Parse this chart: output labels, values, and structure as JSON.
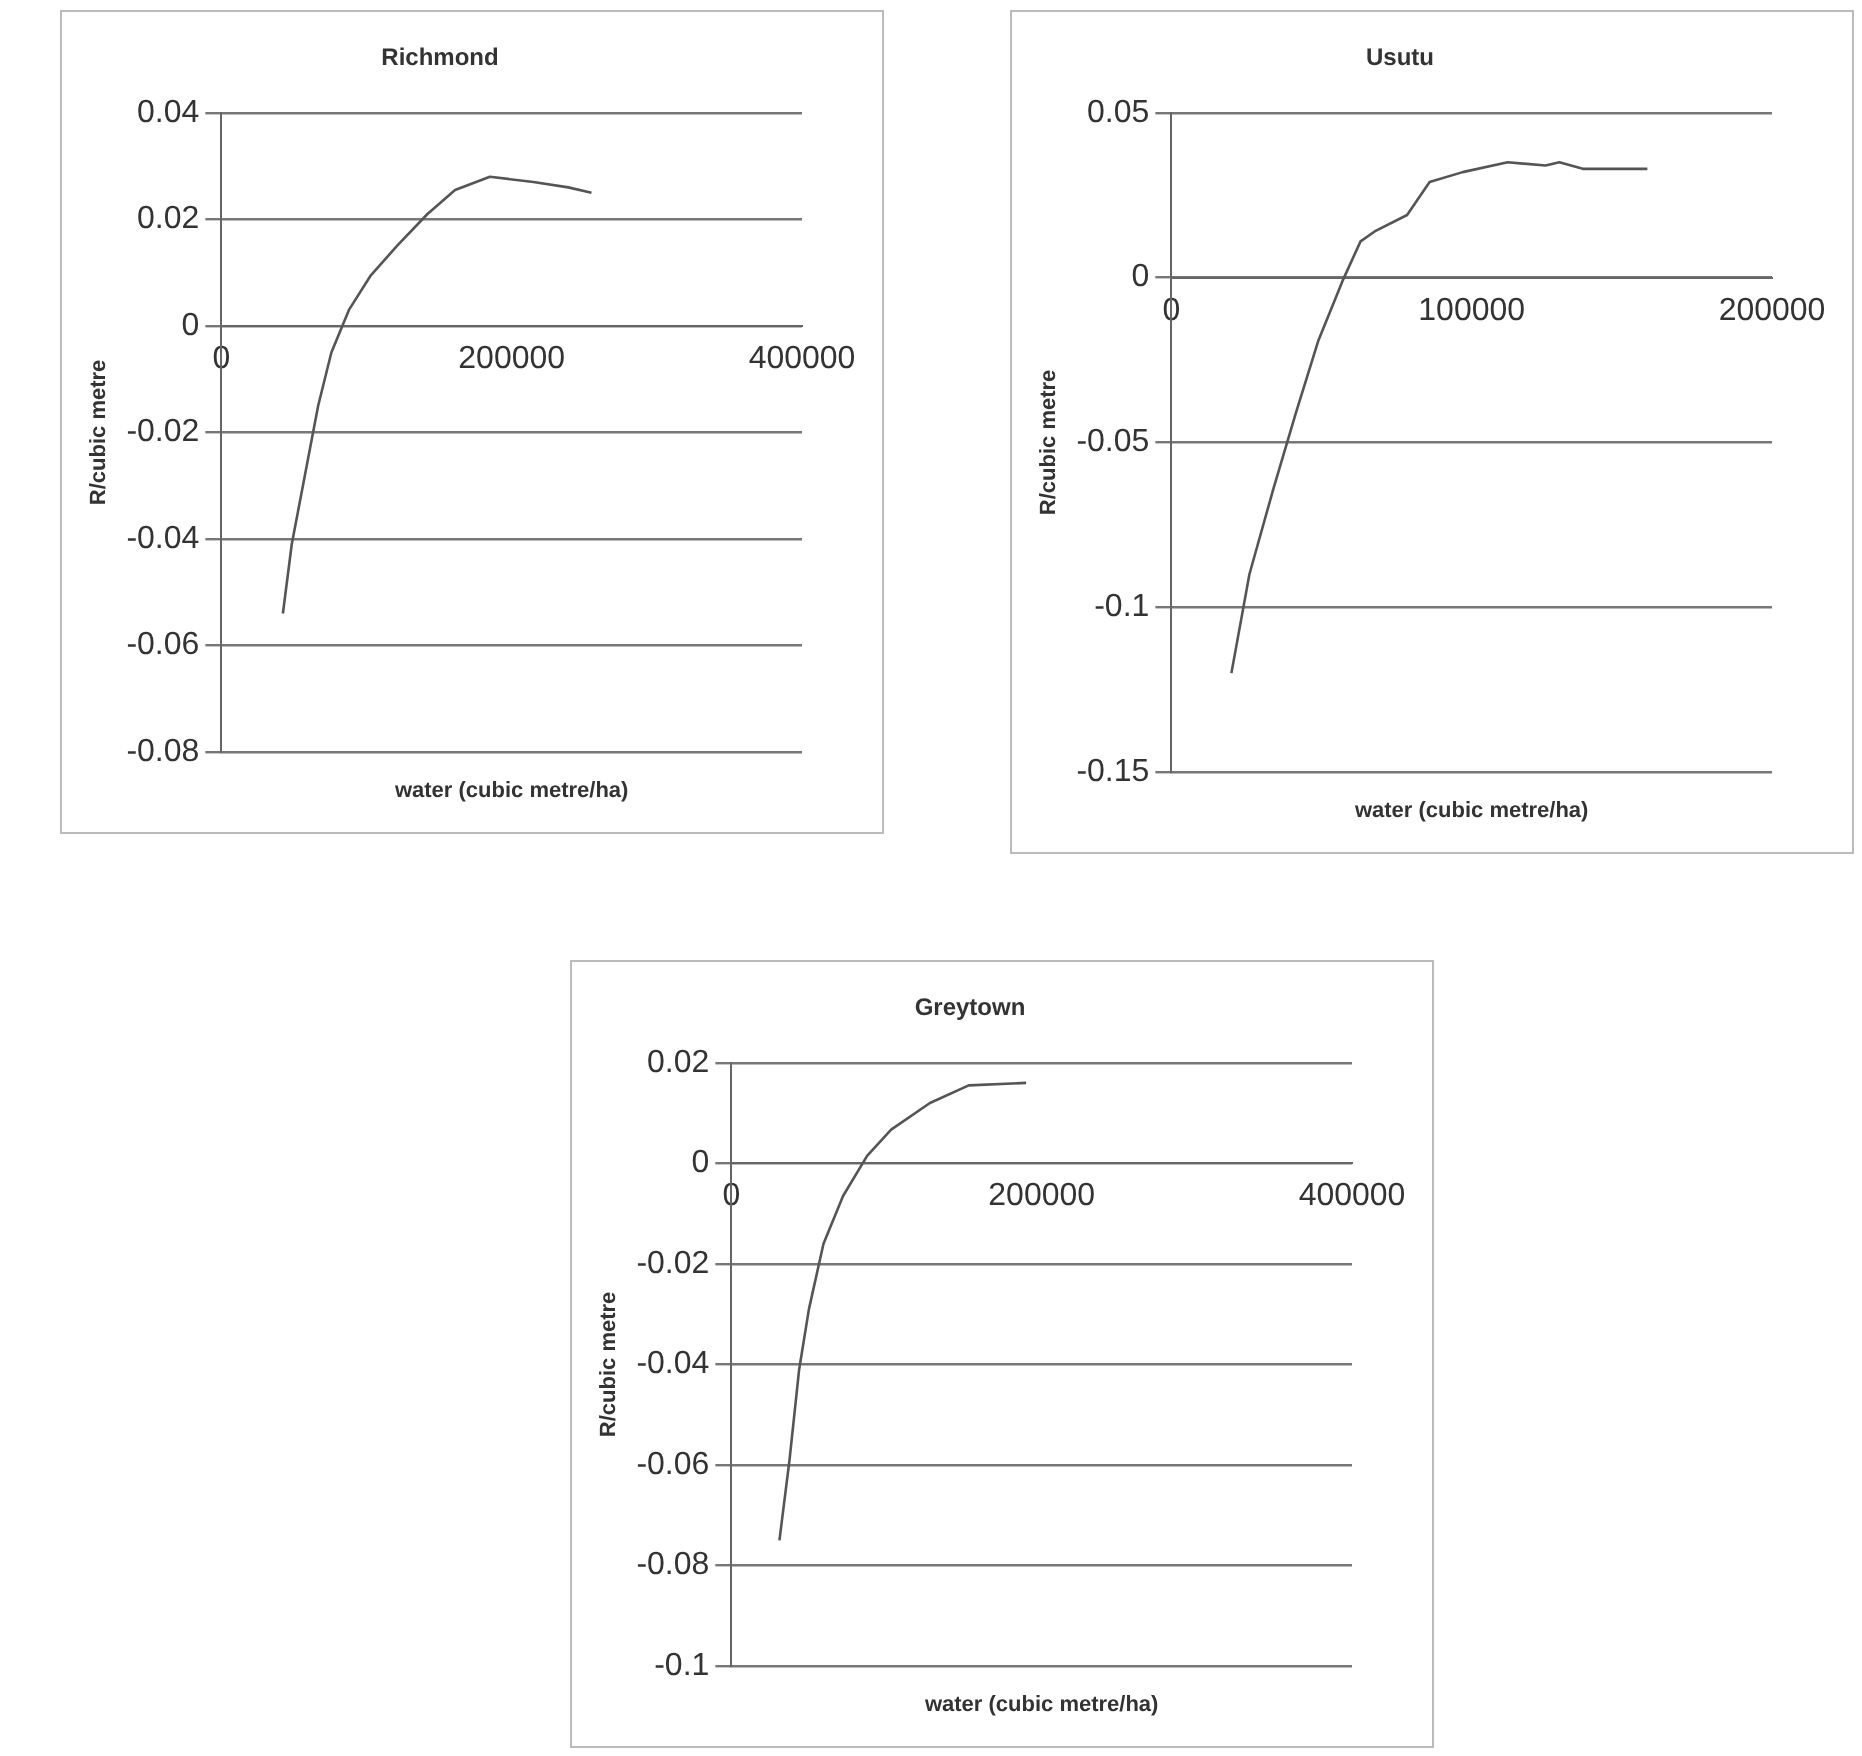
{
  "chart_data": [
    {
      "type": "line",
      "title": "Richmond",
      "xlabel": "water (cubic metre/ha)",
      "ylabel": "R/cubic metre",
      "xlim": [
        0,
        400000
      ],
      "xticks": [
        0,
        200000,
        400000
      ],
      "ylim": [
        -0.08,
        0.04
      ],
      "yticks": [
        -0.08,
        -0.06,
        -0.04,
        -0.02,
        0,
        0.02,
        0.04
      ],
      "grid": "y",
      "legend": false,
      "marker": "none",
      "series": [
        {
          "color": "#555555",
          "x": [
            42400,
            48500,
            57600,
            66700,
            75800,
            87900,
            103000,
            121000,
            142000,
            161000,
            185000,
            215000,
            239000,
            255000
          ],
          "values": [
            -0.054,
            -0.041,
            -0.028,
            -0.015,
            -0.005,
            0.003,
            0.0095,
            0.015,
            0.021,
            0.0255,
            0.028,
            0.027,
            0.026,
            0.025
          ]
        }
      ]
    },
    {
      "type": "line",
      "title": "Usutu",
      "xlabel": "water (cubic metre/ha)",
      "ylabel": "R/cubic metre",
      "xlim": [
        0,
        200000
      ],
      "xticks": [
        0,
        100000,
        200000
      ],
      "ylim": [
        -0.15,
        0.05
      ],
      "yticks": [
        -0.15,
        -0.1,
        -0.05,
        0,
        0.05
      ],
      "grid": "y",
      "legend": false,
      "marker": "none",
      "series": [
        {
          "color": "#555555",
          "x": [
            20000,
            26000,
            34000,
            41500,
            49000,
            57000,
            63000,
            67700,
            78500,
            86000,
            97000,
            112000,
            124600,
            129200,
            137000,
            147700,
            158500
          ],
          "values": [
            -0.12,
            -0.09,
            -0.064,
            -0.041,
            -0.019,
            -0.001,
            0.011,
            0.014,
            0.019,
            0.029,
            0.032,
            0.035,
            0.034,
            0.035,
            0.033,
            0.033,
            0.033
          ]
        }
      ]
    },
    {
      "type": "line",
      "title": "Greytown",
      "xlabel": "water (cubic metre/ha)",
      "ylabel": "R/cubic metre",
      "xlim": [
        0,
        400000
      ],
      "xticks": [
        0,
        200000,
        400000
      ],
      "ylim": [
        -0.1,
        0.02
      ],
      "yticks": [
        -0.1,
        -0.08,
        -0.06,
        -0.04,
        -0.02,
        0,
        0.02
      ],
      "grid": "y",
      "legend": false,
      "marker": "none",
      "series": [
        {
          "color": "#555555",
          "x": [
            31000,
            37500,
            43700,
            50000,
            59400,
            72000,
            87500,
            103000,
            128000,
            153000,
            190000
          ],
          "values": [
            -0.075,
            -0.059,
            -0.041,
            -0.029,
            -0.016,
            -0.0065,
            0.0015,
            0.0067,
            0.012,
            0.0155,
            0.016
          ]
        }
      ]
    }
  ]
}
